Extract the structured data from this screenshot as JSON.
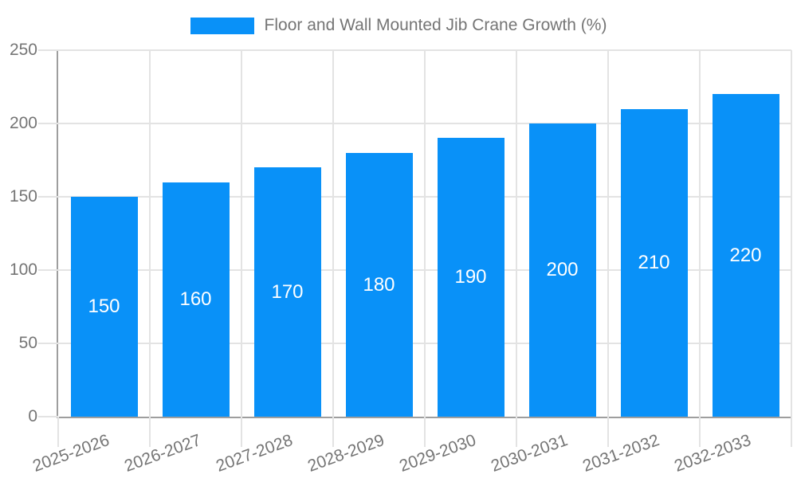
{
  "colors": {
    "bar": "#0991F8",
    "text": "#757575",
    "axis": "#9E9E9E",
    "grid": "#E3E3E3",
    "bar_label": "#FFFFFF",
    "background": "#FFFFFF"
  },
  "legend": {
    "position": "top-center",
    "items": [
      {
        "label": "Floor and Wall Mounted Jib Crane Growth (%)",
        "swatch_color": "#0991F8"
      }
    ]
  },
  "chart_data": {
    "type": "bar",
    "title": "Floor and Wall Mounted Jib Crane Growth (%)",
    "categories": [
      "2025-2026",
      "2026-2027",
      "2027-2028",
      "2028-2029",
      "2029-2030",
      "2030-2031",
      "2031-2032",
      "2032-2033"
    ],
    "values": [
      150,
      160,
      170,
      180,
      190,
      200,
      210,
      220
    ],
    "series": [
      {
        "name": "Floor and Wall Mounted Jib Crane Growth (%)",
        "values": [
          150,
          160,
          170,
          180,
          190,
          200,
          210,
          220
        ]
      }
    ],
    "xlabel": "",
    "ylabel": "",
    "ylim": [
      0,
      250
    ],
    "yticks": [
      0,
      50,
      100,
      150,
      200,
      250
    ],
    "grid": true,
    "legend_position": "top-center",
    "data_labels": "inside-center",
    "data_label_color": "#FFFFFF",
    "x_label_rotation_deg": -20
  }
}
